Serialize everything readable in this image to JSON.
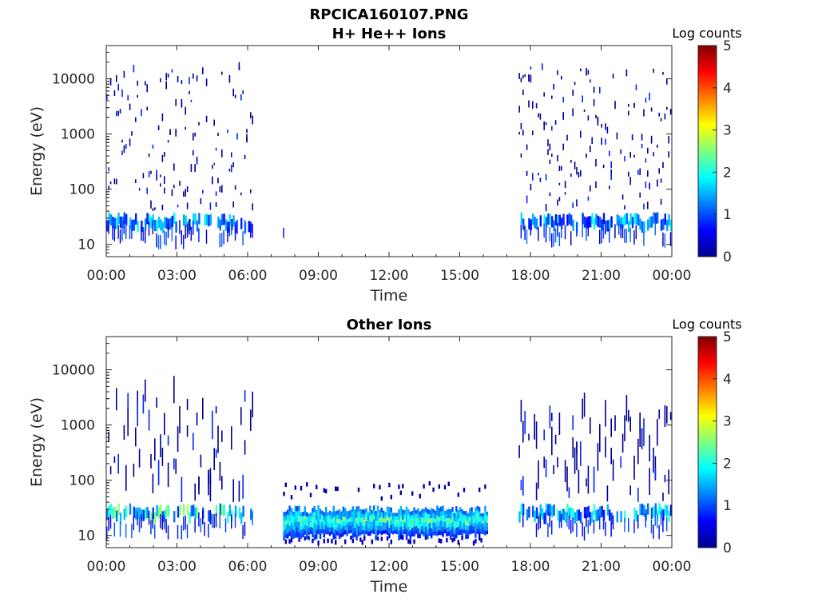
{
  "figure": {
    "filename": "RPCICA160107.PNG"
  },
  "chart_data": [
    {
      "type": "heatmap",
      "title": "H+ He++ Ions",
      "xlabel": "Time",
      "ylabel": "Energy (eV)",
      "x_ticks": [
        "00:00",
        "03:00",
        "06:00",
        "09:00",
        "12:00",
        "15:00",
        "18:00",
        "21:00",
        "00:00"
      ],
      "x_range_hours": [
        0,
        24
      ],
      "y_scale": "log",
      "y_ticks": [
        "10",
        "100",
        "1000",
        "10000"
      ],
      "y_range_ev": [
        6,
        40000
      ],
      "colorbar": {
        "label": "Log counts",
        "ticks": [
          "0",
          "1",
          "2",
          "3",
          "4",
          "5"
        ],
        "range": [
          0,
          5
        ],
        "colormap": "jet"
      },
      "activity_segments": [
        {
          "start_hour": 0.0,
          "end_hour": 6.2,
          "log_counts_max": 2.0,
          "description": "sparse counts 10 eV - 15 keV"
        },
        {
          "start_hour": 7.5,
          "end_hour": 7.55,
          "log_counts_max": 0.3,
          "description": "isolated low-energy hits"
        },
        {
          "start_hour": 17.5,
          "end_hour": 24.0,
          "log_counts_max": 2.0,
          "description": "sparse counts 10 eV - 15 keV"
        }
      ]
    },
    {
      "type": "heatmap",
      "title": "Other Ions",
      "xlabel": "Time",
      "ylabel": "Energy (eV)",
      "x_ticks": [
        "00:00",
        "03:00",
        "06:00",
        "09:00",
        "12:00",
        "15:00",
        "18:00",
        "21:00",
        "00:00"
      ],
      "x_range_hours": [
        0,
        24
      ],
      "y_scale": "log",
      "y_ticks": [
        "10",
        "100",
        "1000",
        "10000"
      ],
      "y_range_ev": [
        6,
        40000
      ],
      "colorbar": {
        "label": "Log counts",
        "ticks": [
          "0",
          "1",
          "2",
          "3",
          "4",
          "5"
        ],
        "range": [
          0,
          5
        ],
        "colormap": "jet"
      },
      "activity_segments": [
        {
          "start_hour": 0.0,
          "end_hour": 6.2,
          "log_counts_max": 2.8,
          "description": "broadband counts, strongest near 20-40 eV"
        },
        {
          "start_hour": 7.5,
          "end_hour": 16.2,
          "log_counts_max": 2.6,
          "description": "continuous low-energy band 8-30 eV"
        },
        {
          "start_hour": 17.5,
          "end_hour": 24.0,
          "log_counts_max": 2.2,
          "description": "sparse counts, band near 20-30 eV"
        }
      ]
    }
  ]
}
